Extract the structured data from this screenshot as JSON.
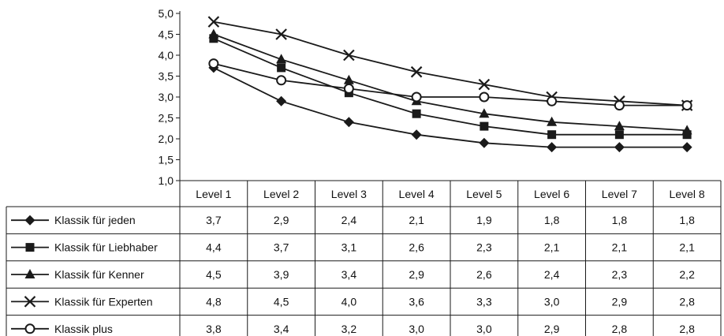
{
  "chart_data": {
    "type": "line",
    "categories": [
      "Level 1",
      "Level 2",
      "Level 3",
      "Level 4",
      "Level 5",
      "Level 6",
      "Level 7",
      "Level 8"
    ],
    "ylim": [
      1.0,
      5.0
    ],
    "yticks": [
      "1,0",
      "1,5",
      "2,0",
      "2,5",
      "3,0",
      "3,5",
      "4,0",
      "4,5",
      "5,0"
    ],
    "grid": false,
    "legend": "table-left",
    "series": [
      {
        "name": "Klassik für jeden",
        "marker": "diamond",
        "values": [
          3.7,
          2.9,
          2.4,
          2.1,
          1.9,
          1.8,
          1.8,
          1.8
        ],
        "labels": [
          "3,7",
          "2,9",
          "2,4",
          "2,1",
          "1,9",
          "1,8",
          "1,8",
          "1,8"
        ]
      },
      {
        "name": "Klassik für Liebhaber",
        "marker": "square",
        "values": [
          4.4,
          3.7,
          3.1,
          2.6,
          2.3,
          2.1,
          2.1,
          2.1
        ],
        "labels": [
          "4,4",
          "3,7",
          "3,1",
          "2,6",
          "2,3",
          "2,1",
          "2,1",
          "2,1"
        ]
      },
      {
        "name": "Klassik für Kenner",
        "marker": "triangle",
        "values": [
          4.5,
          3.9,
          3.4,
          2.9,
          2.6,
          2.4,
          2.3,
          2.2
        ],
        "labels": [
          "4,5",
          "3,9",
          "3,4",
          "2,9",
          "2,6",
          "2,4",
          "2,3",
          "2,2"
        ]
      },
      {
        "name": "Klassik für Experten",
        "marker": "cross",
        "values": [
          4.8,
          4.5,
          4.0,
          3.6,
          3.3,
          3.0,
          2.9,
          2.8
        ],
        "labels": [
          "4,8",
          "4,5",
          "4,0",
          "3,6",
          "3,3",
          "3,0",
          "2,9",
          "2,8"
        ]
      },
      {
        "name": "Klassik plus",
        "marker": "circle",
        "values": [
          3.8,
          3.4,
          3.2,
          3.0,
          3.0,
          2.9,
          2.8,
          2.8
        ],
        "labels": [
          "3,8",
          "3,4",
          "3,2",
          "3,0",
          "3,0",
          "2,9",
          "2,8",
          "2,8"
        ]
      }
    ],
    "colors": {
      "line": "#1a1a1a",
      "background": "#ffffff"
    }
  }
}
